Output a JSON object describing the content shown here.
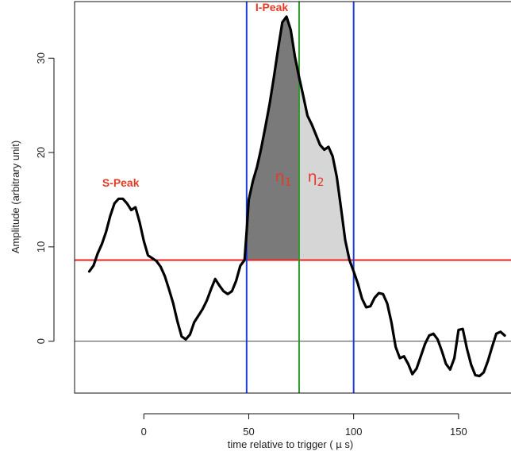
{
  "chart_data": {
    "type": "line",
    "xlabel": "time relative to trigger ( µ s)",
    "ylabel": "Amplitude (arbitrary unit)",
    "xlim": [
      -33,
      175
    ],
    "ylim": [
      -5.5,
      36
    ],
    "x_ticks": [
      0,
      50,
      100,
      150
    ],
    "y_ticks": [
      0,
      10,
      20,
      30
    ],
    "threshold": 8.6,
    "zero_line": 0,
    "vlines": [
      {
        "x": 49,
        "color": "#1f3ddb"
      },
      {
        "x": 74,
        "color": "#2a9a2a"
      },
      {
        "x": 100,
        "color": "#1f3ddb"
      }
    ],
    "annotations": [
      {
        "text": "S-Peak",
        "x": -11,
        "y": 16.4,
        "color": "#e63a24"
      },
      {
        "text": "I-Peak",
        "x": 61,
        "y": 35.0,
        "color": "#e63a24"
      }
    ],
    "region_labels": [
      {
        "symbol": "η",
        "sub": "1",
        "x": 66.5,
        "y": 16.9,
        "color": "#e63a24"
      },
      {
        "symbol": "η",
        "sub": "2",
        "x": 82,
        "y": 16.9,
        "color": "#e63a24"
      }
    ],
    "colors": {
      "curve": "#000000",
      "threshold": "#e82020",
      "fill_left": "#7a7a7a",
      "fill_right": "#d6d6d6"
    },
    "series": [
      {
        "x": [
          -26,
          -24,
          -22,
          -20,
          -18,
          -16,
          -14,
          -12,
          -10,
          -8,
          -6,
          -4,
          -2,
          0,
          2,
          4,
          6,
          8,
          10,
          12,
          14,
          16,
          18,
          20,
          22,
          24,
          26,
          28,
          30,
          32,
          34,
          36,
          38,
          40,
          42,
          44,
          46,
          48,
          49,
          50,
          52,
          54,
          56,
          58,
          60,
          62,
          64,
          66,
          68,
          70,
          72,
          74,
          76,
          78,
          80,
          82,
          84,
          86,
          88,
          90,
          92,
          94,
          96,
          98,
          100,
          102,
          104,
          106,
          108,
          110,
          112,
          114,
          116,
          118,
          120,
          122,
          124,
          126,
          128,
          130,
          132,
          134,
          136,
          138,
          140,
          142,
          144,
          146,
          148,
          150,
          152,
          154,
          156,
          158,
          160,
          162,
          164,
          166,
          168,
          170,
          172
        ],
        "y": [
          7.4,
          8.0,
          9.3,
          10.3,
          11.6,
          13.3,
          14.6,
          15.1,
          15.1,
          14.6,
          13.9,
          14.2,
          12.6,
          10.6,
          9.1,
          8.8,
          8.5,
          7.9,
          6.9,
          5.5,
          4.0,
          2.1,
          0.5,
          0.2,
          0.7,
          2.0,
          2.7,
          3.4,
          4.3,
          5.5,
          6.6,
          5.9,
          5.3,
          5.0,
          5.3,
          6.4,
          8.0,
          8.6,
          11.6,
          15.0,
          17.0,
          18.5,
          20.5,
          22.8,
          25.2,
          28.0,
          31.0,
          33.8,
          34.4,
          33.0,
          30.2,
          28.0,
          26.0,
          23.9,
          23.0,
          21.9,
          20.8,
          20.3,
          20.6,
          19.6,
          17.4,
          14.1,
          10.7,
          8.6,
          7.4,
          6.1,
          4.5,
          3.6,
          3.7,
          4.6,
          5.1,
          5.0,
          4.0,
          2.0,
          -0.6,
          -1.8,
          -1.6,
          -2.4,
          -3.5,
          -2.9,
          -1.6,
          -0.3,
          0.6,
          0.8,
          0.2,
          -1.0,
          -2.4,
          -3.0,
          -1.8,
          1.2,
          1.3,
          -0.8,
          -2.5,
          -3.6,
          -3.7,
          -3.3,
          -2.1,
          -0.6,
          0.8,
          1.0,
          0.6
        ]
      }
    ]
  }
}
